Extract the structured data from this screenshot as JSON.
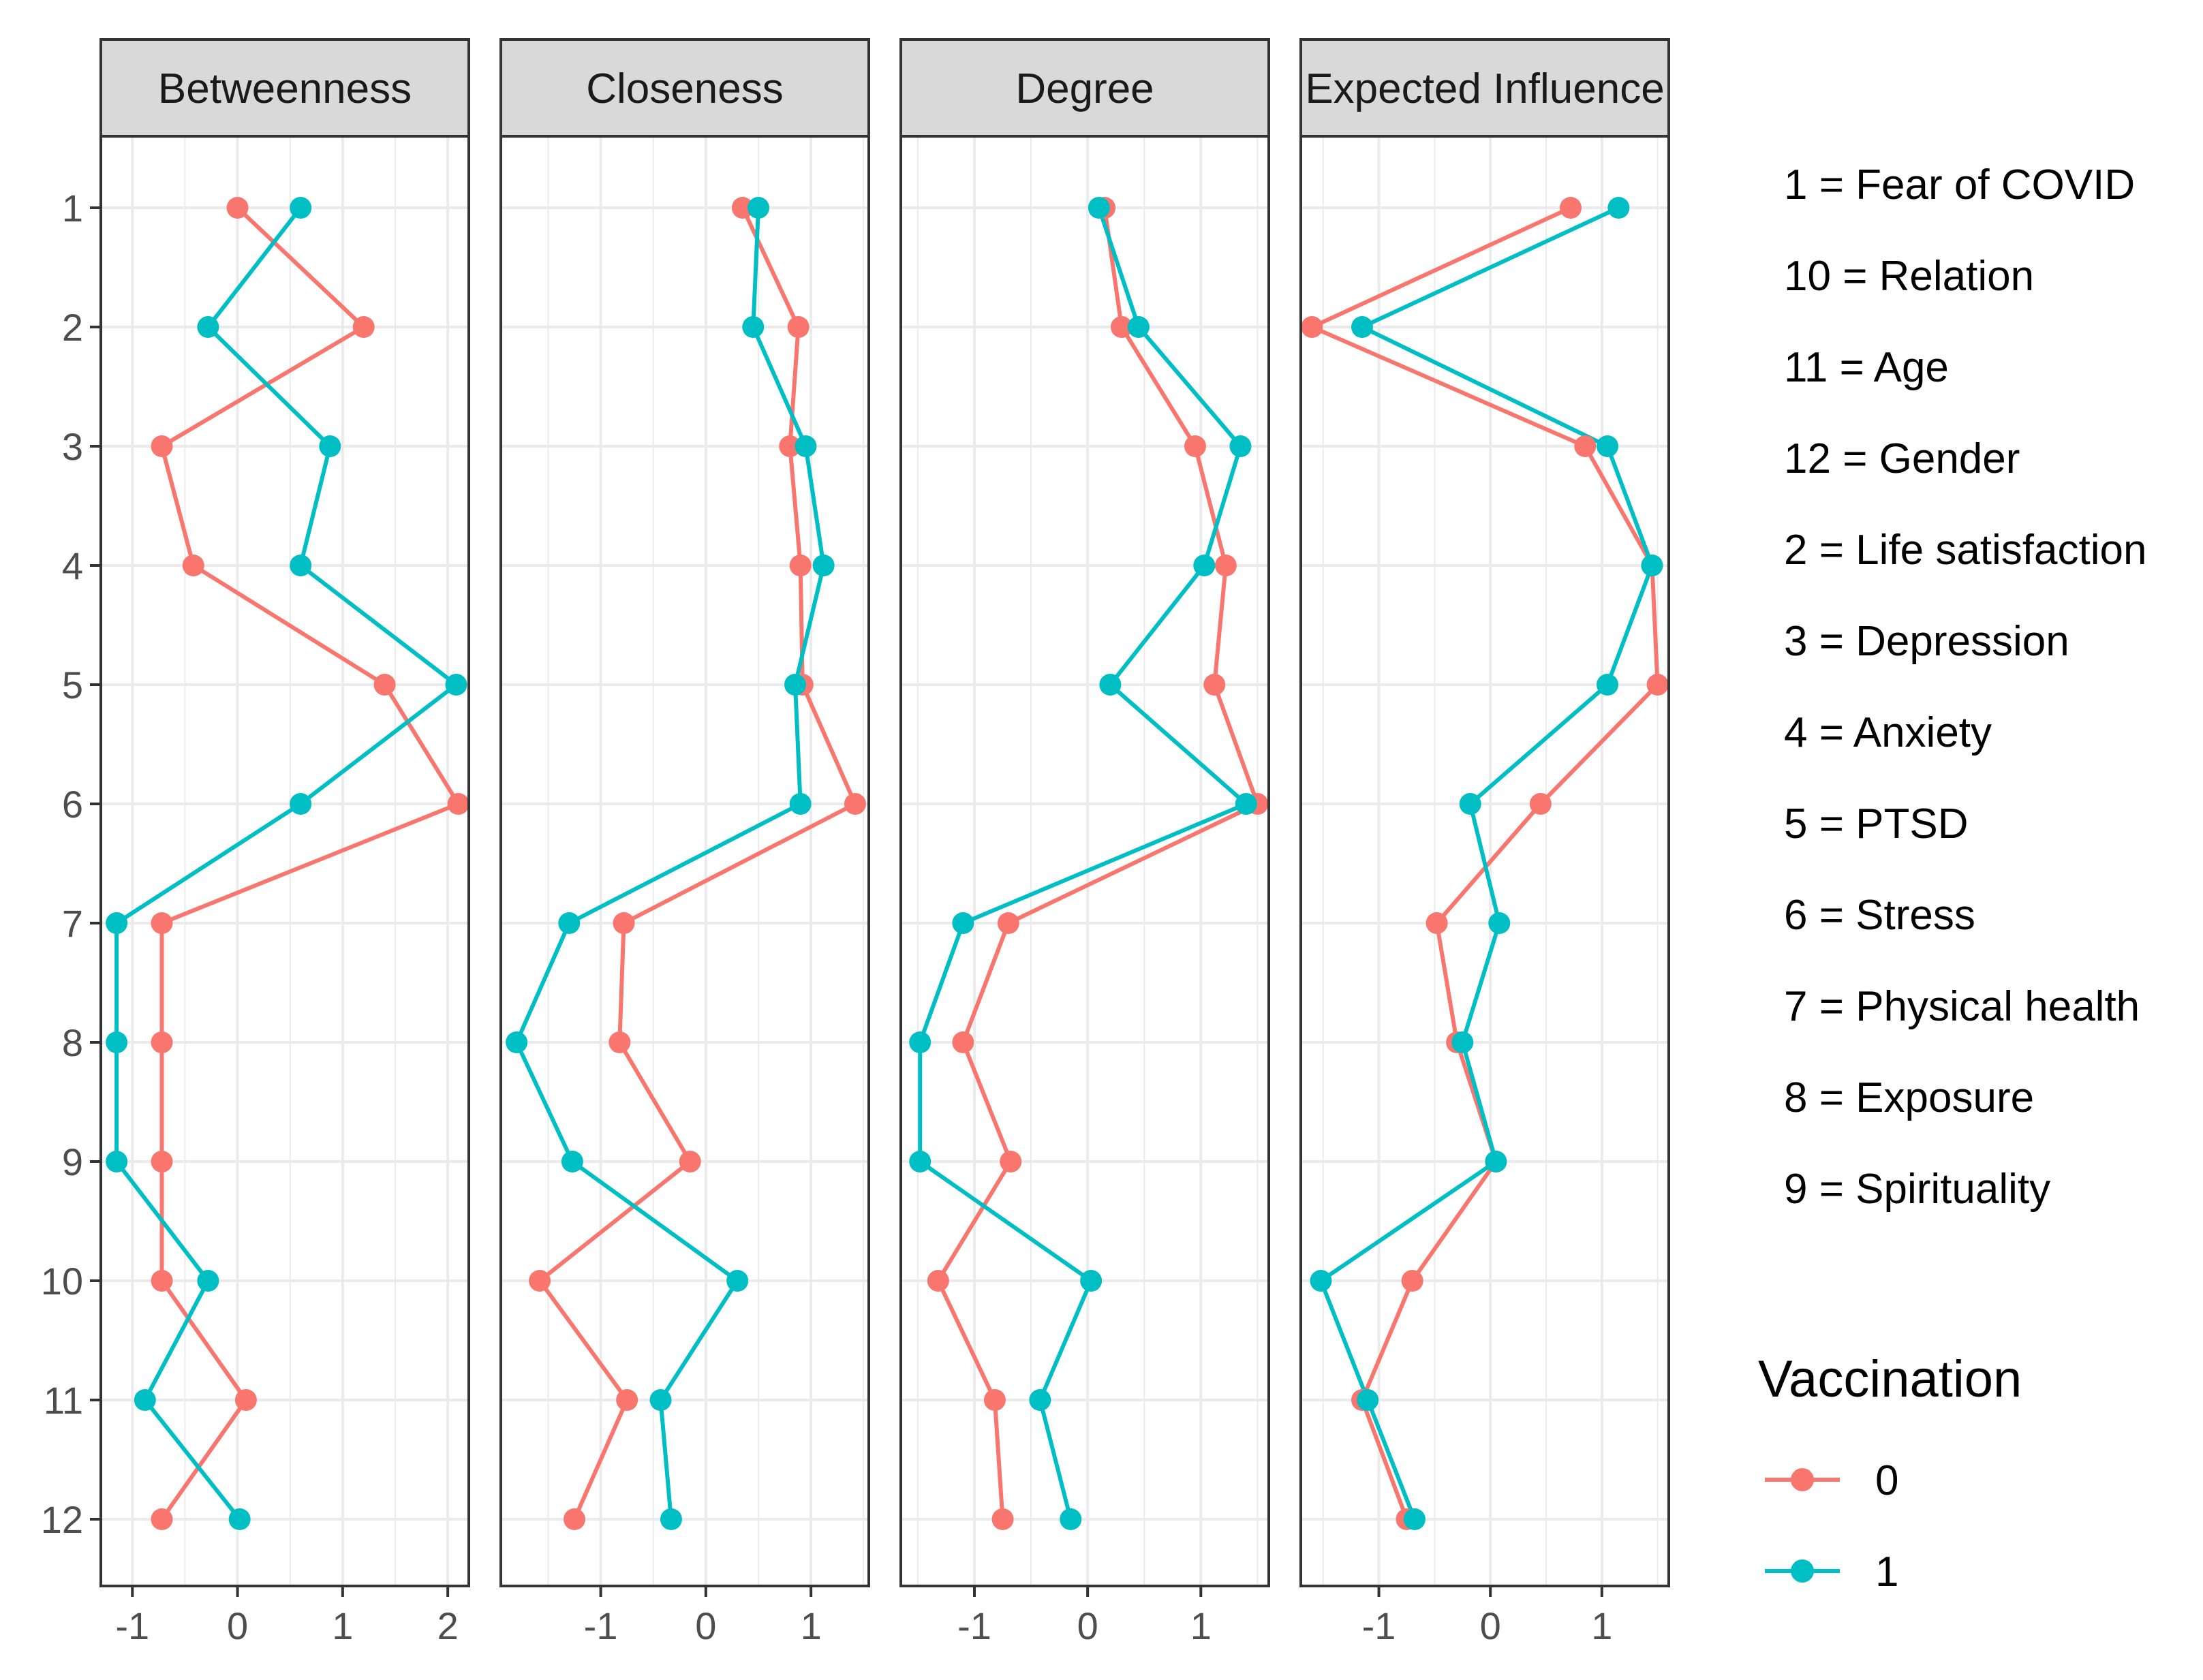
{
  "chart_data": {
    "type": "line",
    "facets": [
      "Betweenness",
      "Closeness",
      "Degree",
      "Expected Influence"
    ],
    "y_categories": [
      "1",
      "2",
      "3",
      "4",
      "5",
      "6",
      "7",
      "8",
      "9",
      "10",
      "11",
      "12"
    ],
    "x_ticks": [
      [
        "-1",
        "0",
        "1",
        "2"
      ],
      [
        "-1",
        "0",
        "1"
      ],
      [
        "-1",
        "0",
        "1"
      ],
      [
        "-1",
        "0",
        "1"
      ]
    ],
    "xlim": [
      [
        -1.3,
        2.2
      ],
      [
        -1.95,
        1.55
      ],
      [
        -1.65,
        1.6
      ],
      [
        -1.7,
        1.6
      ]
    ],
    "series": [
      {
        "name": "0",
        "color": "#F8766D",
        "values": [
          [
            0.0,
            1.2,
            -0.72,
            -0.42,
            1.4,
            2.1,
            -0.72,
            -0.72,
            -0.72,
            -0.72,
            0.08,
            -0.72
          ],
          [
            0.35,
            0.88,
            0.8,
            0.9,
            0.92,
            1.42,
            -0.78,
            -0.82,
            -0.15,
            -1.58,
            -0.75,
            -1.25
          ],
          [
            0.15,
            0.3,
            0.95,
            1.22,
            1.12,
            1.5,
            -0.7,
            -1.1,
            -0.68,
            -1.32,
            -0.82,
            -0.75
          ],
          [
            0.72,
            -1.6,
            0.85,
            1.45,
            1.5,
            0.45,
            -0.48,
            -0.3,
            0.05,
            -0.7,
            -1.15,
            -0.75
          ]
        ]
      },
      {
        "name": "1",
        "color": "#00BFC4",
        "values": [
          [
            0.6,
            -0.28,
            0.88,
            0.6,
            2.08,
            0.6,
            -1.15,
            -1.15,
            -1.15,
            -0.28,
            -0.88,
            0.02
          ],
          [
            0.5,
            0.45,
            0.95,
            1.12,
            0.85,
            0.9,
            -1.3,
            -1.8,
            -1.27,
            0.3,
            -0.43,
            -0.33
          ],
          [
            0.1,
            0.45,
            1.35,
            1.03,
            0.2,
            1.4,
            -1.1,
            -1.48,
            -1.48,
            0.03,
            -0.42,
            -0.15
          ],
          [
            1.15,
            -1.15,
            1.05,
            1.45,
            1.05,
            -0.18,
            0.08,
            -0.25,
            0.05,
            -1.52,
            -1.1,
            -0.68
          ]
        ]
      }
    ],
    "key_labels": [
      "1 = Fear of COVID",
      "10 = Relation",
      "11 = Age",
      "12 = Gender",
      "2 = Life satisfaction",
      "3 = Depression",
      "4 = Anxiety",
      "5 = PTSD",
      "6 = Stress",
      "7 = Physical health",
      "8 = Exposure",
      "9 = Spirituality"
    ],
    "legend": {
      "title": "Vaccination",
      "entries": [
        "0",
        "1"
      ]
    }
  }
}
